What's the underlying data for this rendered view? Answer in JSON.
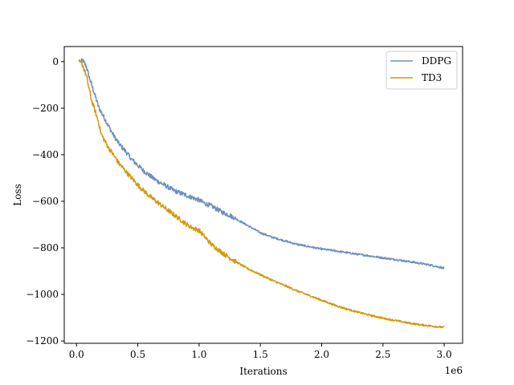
{
  "chart_data": {
    "type": "line",
    "title": "",
    "xlabel": "Iterations",
    "ylabel": "Loss",
    "x_offset_label": "1e6",
    "xlim": [
      -0.1,
      3.15
    ],
    "ylim": [
      -1210,
      65
    ],
    "x_ticks": [
      0.0,
      0.5,
      1.0,
      1.5,
      2.0,
      2.5,
      3.0
    ],
    "x_tick_labels": [
      "0.0",
      "0.5",
      "1.0",
      "1.5",
      "2.0",
      "2.5",
      "3.0"
    ],
    "y_ticks": [
      0,
      -200,
      -400,
      -600,
      -800,
      -1000,
      -1200
    ],
    "y_tick_labels": [
      "0",
      "−200",
      "−400",
      "−600",
      "−800",
      "−1000",
      "−1200"
    ],
    "grid": false,
    "legend_position": "top-right",
    "series": [
      {
        "name": "DDPG",
        "color": "#6b8fbf",
        "x": [
          0.03,
          0.05,
          0.08,
          0.1,
          0.13,
          0.16,
          0.18,
          0.2,
          0.25,
          0.3,
          0.35,
          0.4,
          0.45,
          0.5,
          0.55,
          0.6,
          0.65,
          0.7,
          0.75,
          0.8,
          0.85,
          0.9,
          0.95,
          1.0,
          1.05,
          1.1,
          1.15,
          1.2,
          1.25,
          1.3,
          1.35,
          1.4,
          1.45,
          1.5,
          1.6,
          1.7,
          1.8,
          1.9,
          2.0,
          2.1,
          2.2,
          2.3,
          2.4,
          2.5,
          2.6,
          2.7,
          2.8,
          2.9,
          3.0
        ],
        "y": [
          0,
          5,
          -20,
          -60,
          -110,
          -160,
          -195,
          -215,
          -265,
          -315,
          -355,
          -385,
          -420,
          -445,
          -470,
          -490,
          -510,
          -525,
          -540,
          -555,
          -565,
          -575,
          -585,
          -595,
          -610,
          -620,
          -635,
          -650,
          -660,
          -675,
          -690,
          -705,
          -720,
          -735,
          -755,
          -770,
          -785,
          -795,
          -805,
          -812,
          -820,
          -828,
          -835,
          -843,
          -850,
          -858,
          -866,
          -875,
          -888
        ]
      },
      {
        "name": "TD3",
        "color": "#d4980e",
        "x": [
          0.02,
          0.05,
          0.08,
          0.1,
          0.12,
          0.15,
          0.18,
          0.2,
          0.25,
          0.3,
          0.35,
          0.4,
          0.45,
          0.5,
          0.55,
          0.6,
          0.65,
          0.7,
          0.75,
          0.8,
          0.85,
          0.9,
          0.95,
          1.0,
          1.05,
          1.1,
          1.2,
          1.3,
          1.4,
          1.5,
          1.6,
          1.7,
          1.8,
          1.9,
          2.0,
          2.1,
          2.2,
          2.3,
          2.4,
          2.5,
          2.6,
          2.7,
          2.8,
          2.9,
          3.0
        ],
        "y": [
          0,
          -15,
          -60,
          -110,
          -160,
          -210,
          -260,
          -310,
          -360,
          -400,
          -440,
          -470,
          -500,
          -530,
          -555,
          -580,
          -600,
          -620,
          -640,
          -660,
          -680,
          -700,
          -715,
          -725,
          -755,
          -785,
          -825,
          -860,
          -890,
          -915,
          -940,
          -962,
          -985,
          -1005,
          -1025,
          -1045,
          -1062,
          -1077,
          -1090,
          -1102,
          -1112,
          -1122,
          -1130,
          -1136,
          -1142
        ]
      }
    ]
  }
}
